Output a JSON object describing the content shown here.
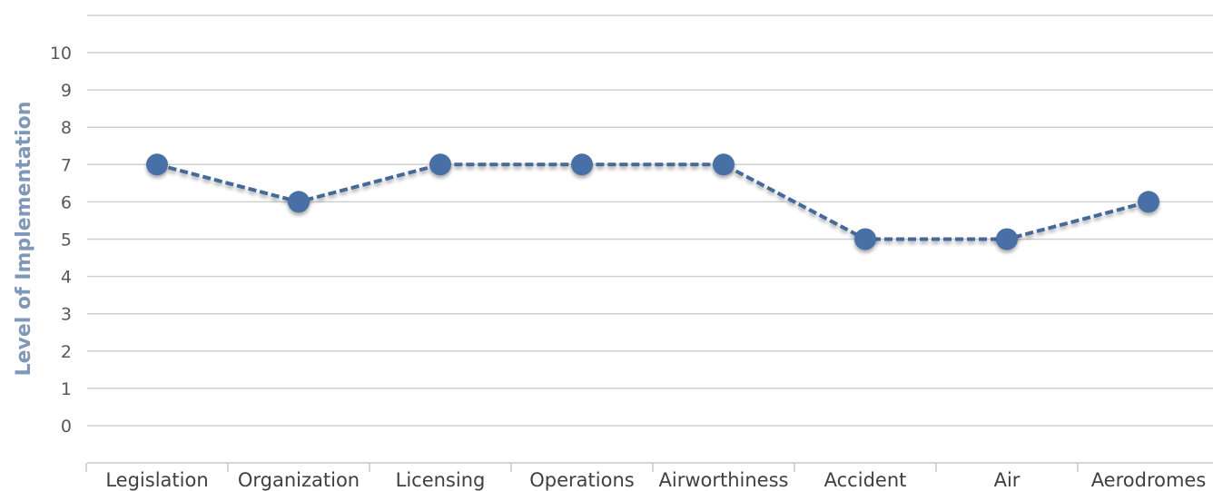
{
  "chart_data": {
    "type": "line",
    "title": "",
    "xlabel": "",
    "ylabel": "Level of Implementation",
    "ylim": [
      0,
      10
    ],
    "yticks": [
      0,
      1,
      2,
      3,
      4,
      5,
      6,
      7,
      8,
      9,
      10
    ],
    "categories": [
      "Legislation",
      "Organization",
      "Licensing",
      "Operations",
      "Airworthiness",
      "Accident",
      "Air",
      "Aerodromes"
    ],
    "series": [
      {
        "values": [
          7,
          6,
          7,
          7,
          7,
          5,
          5,
          6
        ]
      }
    ],
    "grid": true,
    "legend": "none",
    "colors": {
      "line": "#45699b",
      "marker": "#4a70a6",
      "grid": "#d0d0d0",
      "axis": "#c8c8c8"
    }
  }
}
